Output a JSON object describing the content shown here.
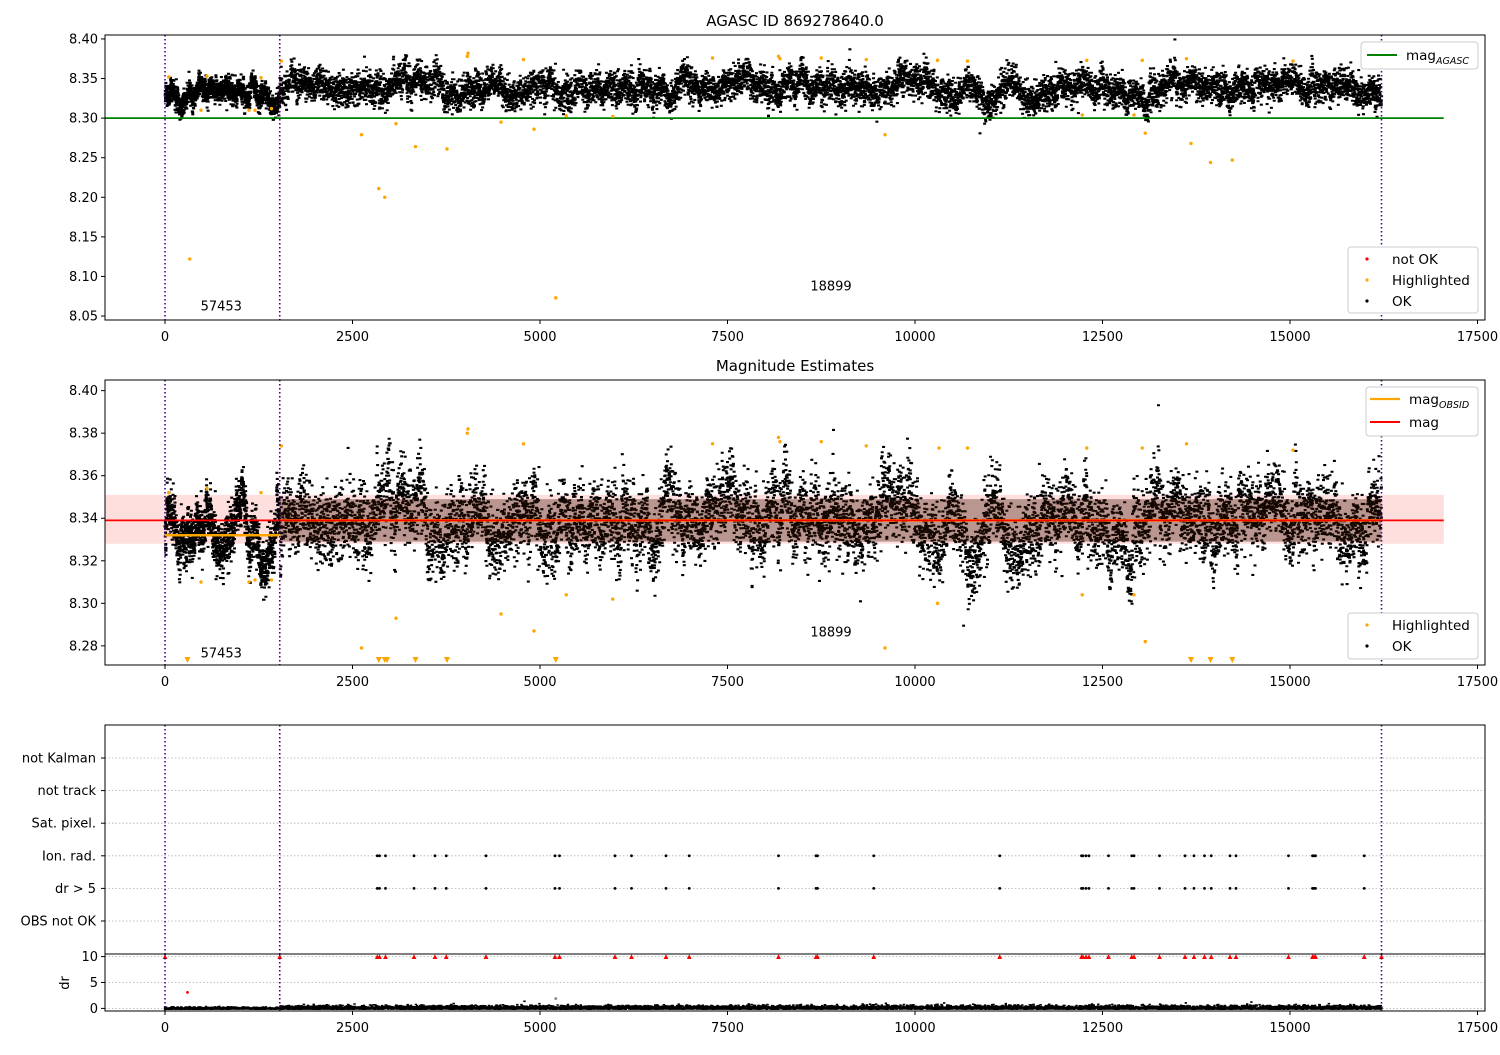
{
  "chart_data": [
    {
      "type": "scatter",
      "title": "AGASC ID 869278640.0",
      "xlim": [
        -800,
        17600
      ],
      "ylim": [
        8.045,
        8.405
      ],
      "xticks": [
        0,
        2500,
        5000,
        7500,
        10000,
        12500,
        15000,
        17500
      ],
      "xtick_labels": [
        "0",
        "2500",
        "5000",
        "7500",
        "10000",
        "12500",
        "15000",
        "17500"
      ],
      "yticks": [
        8.05,
        8.1,
        8.15,
        8.2,
        8.25,
        8.3,
        8.35,
        8.4
      ],
      "ytick_labels": [
        "8.05",
        "8.10",
        "8.15",
        "8.20",
        "8.25",
        "8.30",
        "8.35",
        "8.40"
      ],
      "vlines": [
        0,
        1530,
        16220
      ],
      "obsid_labels": [
        {
          "x": 750,
          "y": 8.057,
          "text": "57453"
        },
        {
          "x": 8880,
          "y": 8.082,
          "text": "18899"
        }
      ],
      "hlines": [
        {
          "name": "mag_AGASC",
          "y": 8.3,
          "x": [
            -800,
            17050
          ],
          "color": "#008000"
        }
      ],
      "ok_band": {
        "segments": [
          {
            "x": [
              0,
              1530
            ],
            "center": 8.332,
            "spread": 0.012
          },
          {
            "x": [
              1530,
              16220
            ],
            "center": 8.339,
            "spread": 0.018
          }
        ]
      },
      "highlighted": [
        [
          50,
          8.352
        ],
        [
          330,
          8.122
        ],
        [
          480,
          8.31
        ],
        [
          560,
          8.353
        ],
        [
          1120,
          8.31
        ],
        [
          1200,
          8.31
        ],
        [
          1280,
          8.351
        ],
        [
          1420,
          8.312
        ],
        [
          1550,
          8.372
        ],
        [
          2620,
          8.279
        ],
        [
          2850,
          8.211
        ],
        [
          2930,
          8.2
        ],
        [
          3080,
          8.293
        ],
        [
          3340,
          8.264
        ],
        [
          3760,
          8.261
        ],
        [
          4030,
          8.378
        ],
        [
          4040,
          8.382
        ],
        [
          4480,
          8.295
        ],
        [
          4780,
          8.374
        ],
        [
          4920,
          8.286
        ],
        [
          5210,
          8.073
        ],
        [
          5350,
          8.303
        ],
        [
          5970,
          8.302
        ],
        [
          7300,
          8.376
        ],
        [
          8180,
          8.378
        ],
        [
          8200,
          8.375
        ],
        [
          8750,
          8.376
        ],
        [
          9350,
          8.374
        ],
        [
          9600,
          8.279
        ],
        [
          10300,
          8.373
        ],
        [
          10700,
          8.372
        ],
        [
          12230,
          8.304
        ],
        [
          12290,
          8.373
        ],
        [
          12920,
          8.304
        ],
        [
          13030,
          8.373
        ],
        [
          13070,
          8.281
        ],
        [
          13620,
          8.375
        ],
        [
          13680,
          8.268
        ],
        [
          13940,
          8.244
        ],
        [
          14230,
          8.247
        ],
        [
          15040,
          8.372
        ]
      ],
      "legend": [
        {
          "label": "mag_AGASC",
          "color": "#008000",
          "kind": "line"
        },
        {
          "label": "not OK",
          "color": "#ff0000",
          "kind": "dot"
        },
        {
          "label": "Highlighted",
          "color": "#ffa500",
          "kind": "dot"
        },
        {
          "label": "OK",
          "color": "#000000",
          "kind": "dot"
        }
      ]
    },
    {
      "type": "scatter",
      "title": "Magnitude Estimates",
      "xlim": [
        -800,
        17600
      ],
      "ylim": [
        8.271,
        8.405
      ],
      "xticks": [
        0,
        2500,
        5000,
        7500,
        10000,
        12500,
        15000,
        17500
      ],
      "xtick_labels": [
        "0",
        "2500",
        "5000",
        "7500",
        "10000",
        "12500",
        "15000",
        "17500"
      ],
      "yticks": [
        8.28,
        8.3,
        8.32,
        8.34,
        8.36,
        8.38,
        8.4
      ],
      "ytick_labels": [
        "8.28",
        "8.30",
        "8.32",
        "8.34",
        "8.36",
        "8.38",
        "8.40"
      ],
      "vlines": [
        0,
        1530,
        16220
      ],
      "obsid_labels": [
        {
          "x": 750,
          "y": 8.2745,
          "text": "57453"
        },
        {
          "x": 8880,
          "y": 8.2845,
          "text": "18899"
        }
      ],
      "mag_line": {
        "y": 8.339,
        "x": [
          -800,
          17050
        ],
        "color": "#ff0000"
      },
      "mag_band": {
        "y": [
          8.328,
          8.351
        ],
        "x": [
          -800,
          17050
        ],
        "color": "#ff0000"
      },
      "obsid_mag": [
        {
          "x": [
            0,
            1530
          ],
          "y": 8.332
        },
        {
          "x": [
            1530,
            16220
          ],
          "y": 8.339
        }
      ],
      "ok_band": {
        "segments": [
          {
            "x": [
              0,
              1530
            ],
            "center": 8.332,
            "spread": 0.01
          },
          {
            "x": [
              1530,
              16220
            ],
            "center": 8.339,
            "spread": 0.015
          }
        ]
      },
      "highlighted": [
        [
          50,
          8.352
        ],
        [
          480,
          8.31
        ],
        [
          560,
          8.354
        ],
        [
          1120,
          8.31
        ],
        [
          1200,
          8.311
        ],
        [
          1280,
          8.352
        ],
        [
          1420,
          8.311
        ],
        [
          1550,
          8.374
        ],
        [
          2620,
          8.279
        ],
        [
          3080,
          8.293
        ],
        [
          4030,
          8.38
        ],
        [
          4040,
          8.382
        ],
        [
          4480,
          8.295
        ],
        [
          4780,
          8.375
        ],
        [
          4920,
          8.287
        ],
        [
          5350,
          8.304
        ],
        [
          5970,
          8.302
        ],
        [
          7300,
          8.375
        ],
        [
          8180,
          8.378
        ],
        [
          8200,
          8.376
        ],
        [
          8750,
          8.376
        ],
        [
          9350,
          8.374
        ],
        [
          9600,
          8.279
        ],
        [
          10300,
          8.3
        ],
        [
          10320,
          8.373
        ],
        [
          10700,
          8.373
        ],
        [
          12230,
          8.304
        ],
        [
          12290,
          8.373
        ],
        [
          12920,
          8.304
        ],
        [
          13030,
          8.373
        ],
        [
          13070,
          8.282
        ],
        [
          13620,
          8.375
        ],
        [
          15040,
          8.372
        ]
      ],
      "clipped_low_x": [
        300,
        2850,
        2930,
        2960,
        3340,
        3760,
        5210,
        13680,
        13940,
        14230
      ],
      "legend": [
        {
          "label": "mag_OBSID",
          "color": "#ffa500",
          "kind": "line"
        },
        {
          "label": "mag",
          "color": "#ff0000",
          "kind": "line"
        },
        {
          "label": "Highlighted",
          "color": "#ffa500",
          "kind": "dot"
        },
        {
          "label": "OK",
          "color": "#000000",
          "kind": "dot"
        }
      ]
    },
    {
      "type": "scatter",
      "title": "",
      "xlim": [
        -800,
        17600
      ],
      "categories": [
        "not Kalman",
        "not track",
        "Sat. pixel.",
        "Ion. rad.",
        "dr > 5",
        "OBS not OK"
      ],
      "vlines": [
        0,
        1530,
        16220
      ],
      "flag_x": [
        2830,
        2860,
        2940,
        3320,
        3600,
        3750,
        4280,
        5200,
        5260,
        6000,
        6220,
        6680,
        6990,
        8180,
        8680,
        8700,
        9450,
        11130,
        12220,
        12240,
        12280,
        12320,
        12580,
        12890,
        12920,
        13260,
        13600,
        13720,
        13860,
        13950,
        14200,
        14280,
        14980,
        15300,
        15320,
        15340,
        15990
      ]
    },
    {
      "type": "scatter",
      "title": "",
      "ylabel": "dr",
      "xlim": [
        -800,
        17600
      ],
      "ylim": [
        -0.5,
        10.5
      ],
      "xticks": [
        0,
        2500,
        5000,
        7500,
        10000,
        12500,
        15000,
        17500
      ],
      "xtick_labels": [
        "0",
        "2500",
        "5000",
        "7500",
        "10000",
        "12500",
        "15000",
        "17500"
      ],
      "yticks": [
        0,
        5,
        10
      ],
      "ytick_labels": [
        "0",
        "5",
        "10"
      ],
      "vlines": [
        0,
        1530,
        16220
      ],
      "dr_outliers": [
        [
          300,
          3.1
        ],
        [
          5210,
          1.9
        ]
      ],
      "dr_clipped_x": [
        0,
        1530,
        2830,
        2860,
        2940,
        3320,
        3600,
        3750,
        4280,
        5200,
        5260,
        6000,
        6220,
        6680,
        6990,
        8180,
        8680,
        8700,
        9450,
        11130,
        12220,
        12240,
        12280,
        12320,
        12580,
        12890,
        12920,
        13260,
        13600,
        13720,
        13860,
        13950,
        14200,
        14280,
        14980,
        15300,
        15320,
        15340,
        15990,
        16220
      ]
    }
  ]
}
